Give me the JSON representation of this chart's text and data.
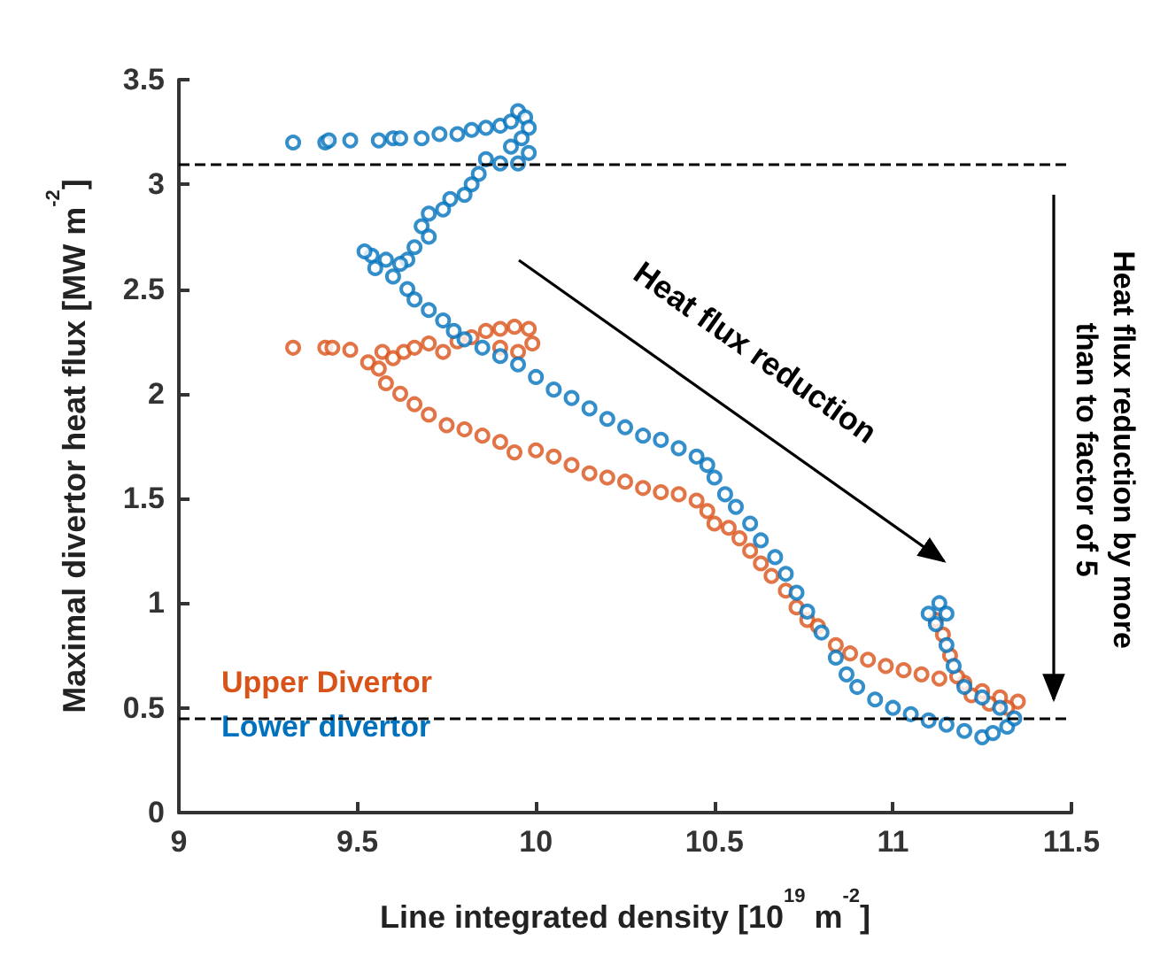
{
  "chart_data": {
    "type": "scatter",
    "xlabel": "Line integrated density [10$^{19}$ m$^{-2}$]",
    "ylabel": "Maximal divertor heat flux [MW m$^{-2}$]",
    "xlim": [
      9,
      11.5
    ],
    "xticks": [
      9,
      9.5,
      10,
      10.5,
      11,
      11.5
    ],
    "ylim": [
      0,
      3.5
    ],
    "yticks": [
      0,
      0.5,
      1,
      1.5,
      2,
      2.5,
      3,
      3.5
    ],
    "grid": false,
    "legend": "bottom left",
    "marker": "circle",
    "series": [
      {
        "name": "Upper Divertor",
        "color": "#d95319",
        "x": [
          9.32,
          9.41,
          9.43,
          9.48,
          9.53,
          9.56,
          9.57,
          9.6,
          9.63,
          9.66,
          9.7,
          9.74,
          9.78,
          9.82,
          9.86,
          9.9,
          9.94,
          9.98,
          9.99,
          9.95,
          9.9,
          9.58,
          9.62,
          9.66,
          9.7,
          9.75,
          9.8,
          9.85,
          9.9,
          9.94,
          10.0,
          10.05,
          10.1,
          10.15,
          10.2,
          10.25,
          10.3,
          10.35,
          10.4,
          10.45,
          10.48,
          10.5,
          10.54,
          10.57,
          10.6,
          10.63,
          10.66,
          10.7,
          10.73,
          10.76,
          10.79,
          10.84,
          10.88,
          10.93,
          10.98,
          11.03,
          11.08,
          11.13,
          11.2,
          11.25,
          11.3,
          11.35,
          11.32,
          11.27,
          11.22,
          11.18,
          11.16,
          11.14,
          11.12
        ],
        "values": [
          2.22,
          2.22,
          2.22,
          2.21,
          2.15,
          2.12,
          2.2,
          2.17,
          2.2,
          2.22,
          2.24,
          2.2,
          2.25,
          2.27,
          2.3,
          2.31,
          2.32,
          2.31,
          2.24,
          2.2,
          2.22,
          2.05,
          2.0,
          1.95,
          1.9,
          1.85,
          1.83,
          1.8,
          1.77,
          1.72,
          1.73,
          1.7,
          1.66,
          1.62,
          1.6,
          1.58,
          1.55,
          1.53,
          1.52,
          1.49,
          1.44,
          1.38,
          1.36,
          1.31,
          1.25,
          1.19,
          1.13,
          1.06,
          0.98,
          0.92,
          0.89,
          0.8,
          0.76,
          0.73,
          0.7,
          0.68,
          0.66,
          0.64,
          0.62,
          0.58,
          0.55,
          0.53,
          0.5,
          0.52,
          0.56,
          0.65,
          0.75,
          0.85,
          0.92
        ]
      },
      {
        "name": "Lower divertor",
        "color": "#0072bd",
        "x": [
          9.32,
          9.41,
          9.42,
          9.48,
          9.56,
          9.6,
          9.62,
          9.68,
          9.73,
          9.78,
          9.82,
          9.86,
          9.9,
          9.93,
          9.95,
          9.97,
          9.98,
          9.96,
          9.93,
          9.98,
          9.95,
          9.9,
          9.86,
          9.84,
          9.82,
          9.8,
          9.76,
          9.74,
          9.7,
          9.68,
          9.7,
          9.66,
          9.64,
          9.62,
          9.58,
          9.54,
          9.52,
          9.55,
          9.6,
          9.64,
          9.66,
          9.7,
          9.74,
          9.77,
          9.8,
          9.85,
          9.9,
          9.95,
          10.0,
          10.05,
          10.1,
          10.15,
          10.2,
          10.25,
          10.3,
          10.35,
          10.4,
          10.45,
          10.48,
          10.5,
          10.53,
          10.56,
          10.6,
          10.63,
          10.67,
          10.7,
          10.73,
          10.76,
          10.8,
          10.84,
          10.87,
          10.9,
          10.95,
          11.0,
          11.05,
          11.1,
          11.15,
          11.2,
          11.25,
          11.28,
          11.32,
          11.34,
          11.3,
          11.25,
          11.2,
          11.17,
          11.15,
          11.12,
          11.1,
          11.13,
          11.15
        ],
        "values": [
          3.2,
          3.2,
          3.21,
          3.21,
          3.21,
          3.22,
          3.22,
          3.22,
          3.24,
          3.24,
          3.26,
          3.27,
          3.28,
          3.3,
          3.35,
          3.32,
          3.27,
          3.22,
          3.18,
          3.15,
          3.1,
          3.1,
          3.12,
          3.05,
          3.0,
          2.95,
          2.93,
          2.88,
          2.86,
          2.8,
          2.75,
          2.7,
          2.64,
          2.62,
          2.64,
          2.66,
          2.68,
          2.6,
          2.56,
          2.5,
          2.45,
          2.4,
          2.35,
          2.3,
          2.26,
          2.22,
          2.18,
          2.14,
          2.08,
          2.02,
          1.98,
          1.93,
          1.88,
          1.84,
          1.8,
          1.78,
          1.74,
          1.7,
          1.66,
          1.6,
          1.52,
          1.46,
          1.38,
          1.3,
          1.22,
          1.14,
          1.05,
          0.96,
          0.86,
          0.74,
          0.66,
          0.6,
          0.54,
          0.5,
          0.47,
          0.44,
          0.42,
          0.39,
          0.36,
          0.38,
          0.41,
          0.45,
          0.5,
          0.55,
          0.6,
          0.7,
          0.8,
          0.9,
          0.95,
          1.0,
          0.95
        ]
      }
    ],
    "ref_lines": [
      {
        "axis": "y",
        "value": 3.1,
        "color": "#000000",
        "line_style": "dashed"
      },
      {
        "axis": "y",
        "value": 0.45,
        "color": "#000000",
        "line_style": "dashed"
      }
    ],
    "annotations": [
      "Heat flux reduction",
      "Heat flux reduction by more than to factor of 5"
    ]
  }
}
